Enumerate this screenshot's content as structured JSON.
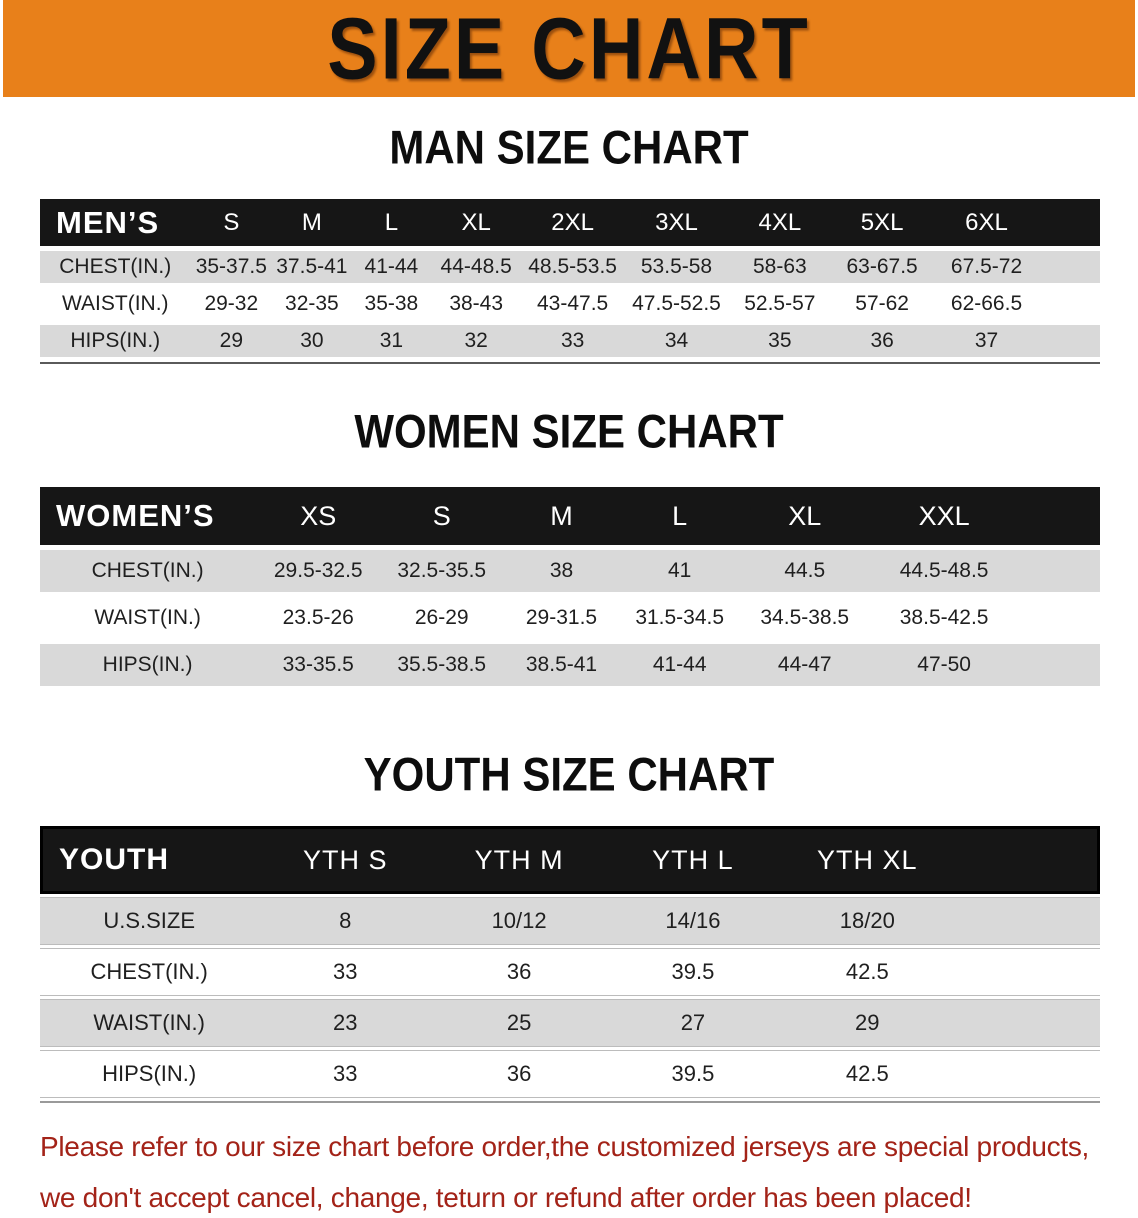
{
  "banner": {
    "title": "SIZE CHART",
    "bg_color": "#E8801A",
    "text_color": "#111111"
  },
  "sections": [
    {
      "heading": "MAN SIZE CHART",
      "table": {
        "header": [
          "MEN’S",
          "S",
          "M",
          "L",
          "XL",
          "2XL",
          "3XL",
          "4XL",
          "5XL",
          "6XL"
        ],
        "rows": [
          {
            "label": "CHEST(IN.)",
            "values": [
              "35-37.5",
              "37.5-41",
              "41-44",
              "44-48.5",
              "48.5-53.5",
              "53.5-58",
              "58-63",
              "63-67.5",
              "67.5-72"
            ]
          },
          {
            "label": "WAIST(IN.)",
            "values": [
              "29-32",
              "32-35",
              "35-38",
              "38-43",
              "43-47.5",
              "47.5-52.5",
              "52.5-57",
              "57-62",
              "62-66.5"
            ]
          },
          {
            "label": "HIPS(IN.)",
            "values": [
              "29",
              "30",
              "31",
              "32",
              "33",
              "34",
              "35",
              "36",
              "37"
            ]
          }
        ]
      }
    },
    {
      "heading": "WOMEN SIZE CHART",
      "table": {
        "header": [
          "WOMEN’S",
          "XS",
          "S",
          "M",
          "L",
          "XL",
          "XXL"
        ],
        "rows": [
          {
            "label": "CHEST(IN.)",
            "values": [
              "29.5-32.5",
              "32.5-35.5",
              "38",
              "41",
              "44.5",
              "44.5-48.5"
            ]
          },
          {
            "label": "WAIST(IN.)",
            "values": [
              "23.5-26",
              "26-29",
              "29-31.5",
              "31.5-34.5",
              "34.5-38.5",
              "38.5-42.5"
            ]
          },
          {
            "label": "HIPS(IN.)",
            "values": [
              "33-35.5",
              "35.5-38.5",
              "38.5-41",
              "41-44",
              "44-47",
              "47-50"
            ]
          }
        ]
      }
    },
    {
      "heading": "YOUTH SIZE CHART",
      "table": {
        "header": [
          "YOUTH",
          "YTH S",
          "YTH M",
          "YTH L",
          "YTH XL"
        ],
        "rows": [
          {
            "label": "U.S.SIZE",
            "values": [
              "8",
              "10/12",
              "14/16",
              "18/20"
            ]
          },
          {
            "label": "CHEST(IN.)",
            "values": [
              "33",
              "36",
              "39.5",
              "42.5"
            ]
          },
          {
            "label": "WAIST(IN.)",
            "values": [
              "23",
              "25",
              "27",
              "29"
            ]
          },
          {
            "label": "HIPS(IN.)",
            "values": [
              "33",
              "36",
              "39.5",
              "42.5"
            ]
          }
        ]
      }
    }
  ],
  "footer": {
    "text_color": "#A32318",
    "lines": [
      "Please refer to our size chart before order,the customized jerseys are special products,",
      "we don't accept cancel, change, teturn or refund after order has been placed!"
    ]
  }
}
